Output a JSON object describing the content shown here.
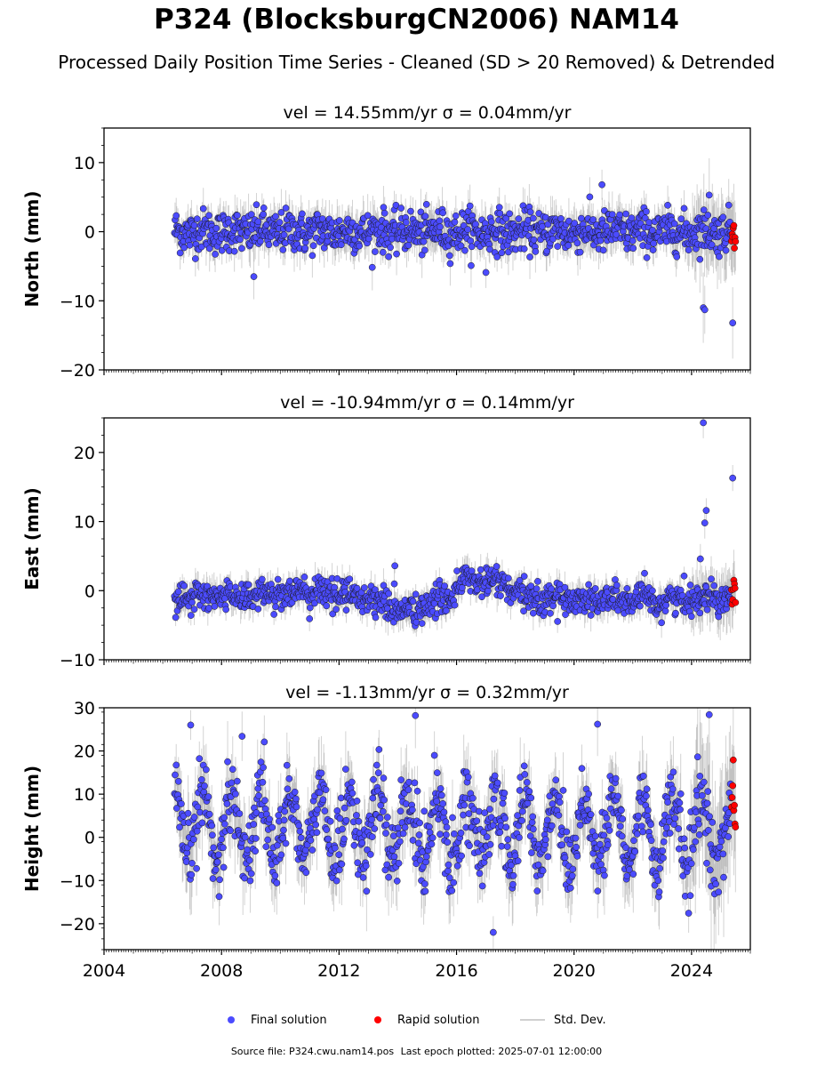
{
  "title": "P324 (BlocksburgCN2006) NAM14",
  "subtitle": "Processed Daily Position Time Series - Cleaned (SD > 20 Removed) & Detrended",
  "footer": {
    "source_file": "Source file: P324.cwu.nam14.pos",
    "last_epoch": "Last epoch plotted: 2025-07-01 12:00:00"
  },
  "legend": {
    "final": "Final solution",
    "rapid": "Rapid solution",
    "sd": "Std. Dev."
  },
  "colors": {
    "final": "#4b4bff",
    "rapid": "#ff0000",
    "sd": "#d0d0d0"
  },
  "chart_data": [
    {
      "type": "scatter",
      "title": "vel = 14.55mm/yr   σ = 0.04mm/yr",
      "ylabel": "North (mm)",
      "xlim": [
        2004,
        2026
      ],
      "ylim": [
        -20,
        15
      ],
      "yticks": [
        -20,
        -10,
        0,
        10
      ],
      "xticks": [
        2004,
        2008,
        2012,
        2016,
        2020,
        2024
      ],
      "data_start": 2006.4,
      "data_end": 2025.5,
      "rapid_start": 2025.35,
      "trend": [
        [
          2006.4,
          0
        ],
        [
          2025.5,
          0
        ]
      ],
      "noise_sd": 1.5,
      "seasonal_amplitude": 0.3,
      "outliers": [
        [
          2020.95,
          6.8
        ],
        [
          2024.4,
          -11
        ],
        [
          2024.45,
          -11.3
        ],
        [
          2025.4,
          -13.2
        ],
        [
          2009.1,
          -6.5
        ],
        [
          2017.0,
          -5.9
        ],
        [
          2024.6,
          5.3
        ]
      ]
    },
    {
      "type": "scatter",
      "title": "vel = -10.94mm/yr   σ = 0.14mm/yr",
      "ylabel": "East (mm)",
      "xlim": [
        2004,
        2026
      ],
      "ylim": [
        -10,
        25
      ],
      "yticks": [
        -10,
        0,
        10,
        20
      ],
      "xticks": [
        2004,
        2008,
        2012,
        2016,
        2020,
        2024
      ],
      "data_start": 2006.4,
      "data_end": 2025.5,
      "rapid_start": 2025.35,
      "trend": [
        [
          2006.4,
          -1.2
        ],
        [
          2010.5,
          -0.2
        ],
        [
          2012.5,
          -0.5
        ],
        [
          2013.3,
          -1.5
        ],
        [
          2014.3,
          -3.2
        ],
        [
          2015.5,
          -1.5
        ],
        [
          2016.3,
          1.5
        ],
        [
          2017.5,
          1.2
        ],
        [
          2018.2,
          -1
        ],
        [
          2020,
          -1.2
        ],
        [
          2023,
          -1.5
        ],
        [
          2025.5,
          -0.6
        ]
      ],
      "noise_sd": 1.1,
      "seasonal_amplitude": 0.4,
      "outliers": [
        [
          2024.4,
          24.3
        ],
        [
          2025.4,
          16.3
        ],
        [
          2024.5,
          11.6
        ],
        [
          2024.45,
          9.8
        ],
        [
          2013.9,
          3.6
        ],
        [
          2024.3,
          4.6
        ]
      ]
    },
    {
      "type": "scatter",
      "title": "vel = -1.13mm/yr   σ = 0.32mm/yr",
      "ylabel": "Height (mm)",
      "xlim": [
        2004,
        2026
      ],
      "ylim": [
        -26,
        30
      ],
      "yticks": [
        -20,
        -10,
        0,
        10,
        20,
        30
      ],
      "xticks": [
        2004,
        2008,
        2012,
        2016,
        2020,
        2024
      ],
      "xticklabels": [
        "2004",
        "2008",
        "2012",
        "2016",
        "2020",
        "2024"
      ],
      "data_start": 2006.4,
      "data_end": 2025.5,
      "rapid_start": 2025.35,
      "trend": [
        [
          2006.4,
          3
        ],
        [
          2025.5,
          1
        ]
      ],
      "noise_sd": 4.2,
      "seasonal_amplitude": 8,
      "outliers": [
        [
          2006.95,
          26
        ],
        [
          2014.6,
          28.2
        ],
        [
          2024.6,
          28.4
        ],
        [
          2017.25,
          -22
        ],
        [
          2020.8,
          26.2
        ],
        [
          2008.7,
          23.4
        ]
      ]
    }
  ]
}
